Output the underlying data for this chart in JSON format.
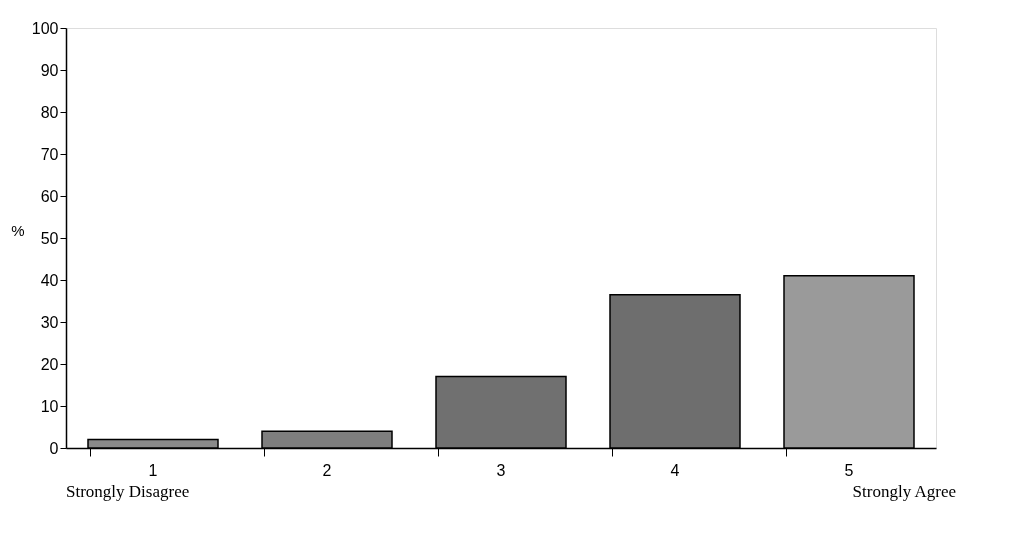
{
  "chart_data": {
    "type": "bar",
    "ylabel": "%",
    "categories": [
      "1",
      "2",
      "3",
      "4",
      "5"
    ],
    "values": [
      2,
      4,
      17,
      36.5,
      41
    ],
    "colors": [
      "#8a8a8a",
      "#7e7e7e",
      "#707070",
      "#6e6e6e",
      "#9a9a9a"
    ],
    "ylim": [
      0,
      100
    ],
    "yticks": [
      0,
      10,
      20,
      30,
      40,
      50,
      60,
      70,
      80,
      90,
      100
    ],
    "grid": false,
    "annotations": [
      "Strongly Disagree",
      "Strongly Agree"
    ]
  }
}
